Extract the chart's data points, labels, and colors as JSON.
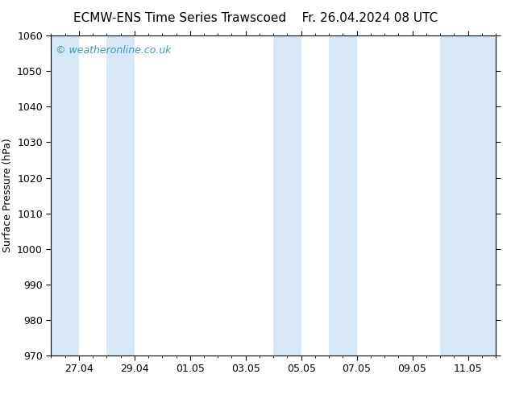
{
  "title_left": "ECMW-ENS Time Series Trawscoed",
  "title_right": "Fr. 26.04.2024 08 UTC",
  "ylabel": "Surface Pressure (hPa)",
  "ylim": [
    970,
    1060
  ],
  "yticks": [
    970,
    980,
    990,
    1000,
    1010,
    1020,
    1030,
    1040,
    1050,
    1060
  ],
  "total_days": 16,
  "xtick_labels": [
    "27.04",
    "29.04",
    "01.05",
    "03.05",
    "05.05",
    "07.05",
    "09.05",
    "11.05"
  ],
  "xtick_positions": [
    1,
    3,
    5,
    7,
    9,
    11,
    13,
    15
  ],
  "shade_bands": [
    {
      "start_day": 0,
      "end_day": 1
    },
    {
      "start_day": 2,
      "end_day": 3
    },
    {
      "start_day": 8,
      "end_day": 9
    },
    {
      "start_day": 10,
      "end_day": 11
    },
    {
      "start_day": 14,
      "end_day": 16
    }
  ],
  "shade_color": "#d6e8f5",
  "background_color": "#ffffff",
  "watermark_text": "© weatheronline.co.uk",
  "watermark_color": "#3399cc",
  "watermark_fontsize": 9,
  "title_fontsize": 11,
  "ylabel_fontsize": 9,
  "tick_fontsize": 9
}
